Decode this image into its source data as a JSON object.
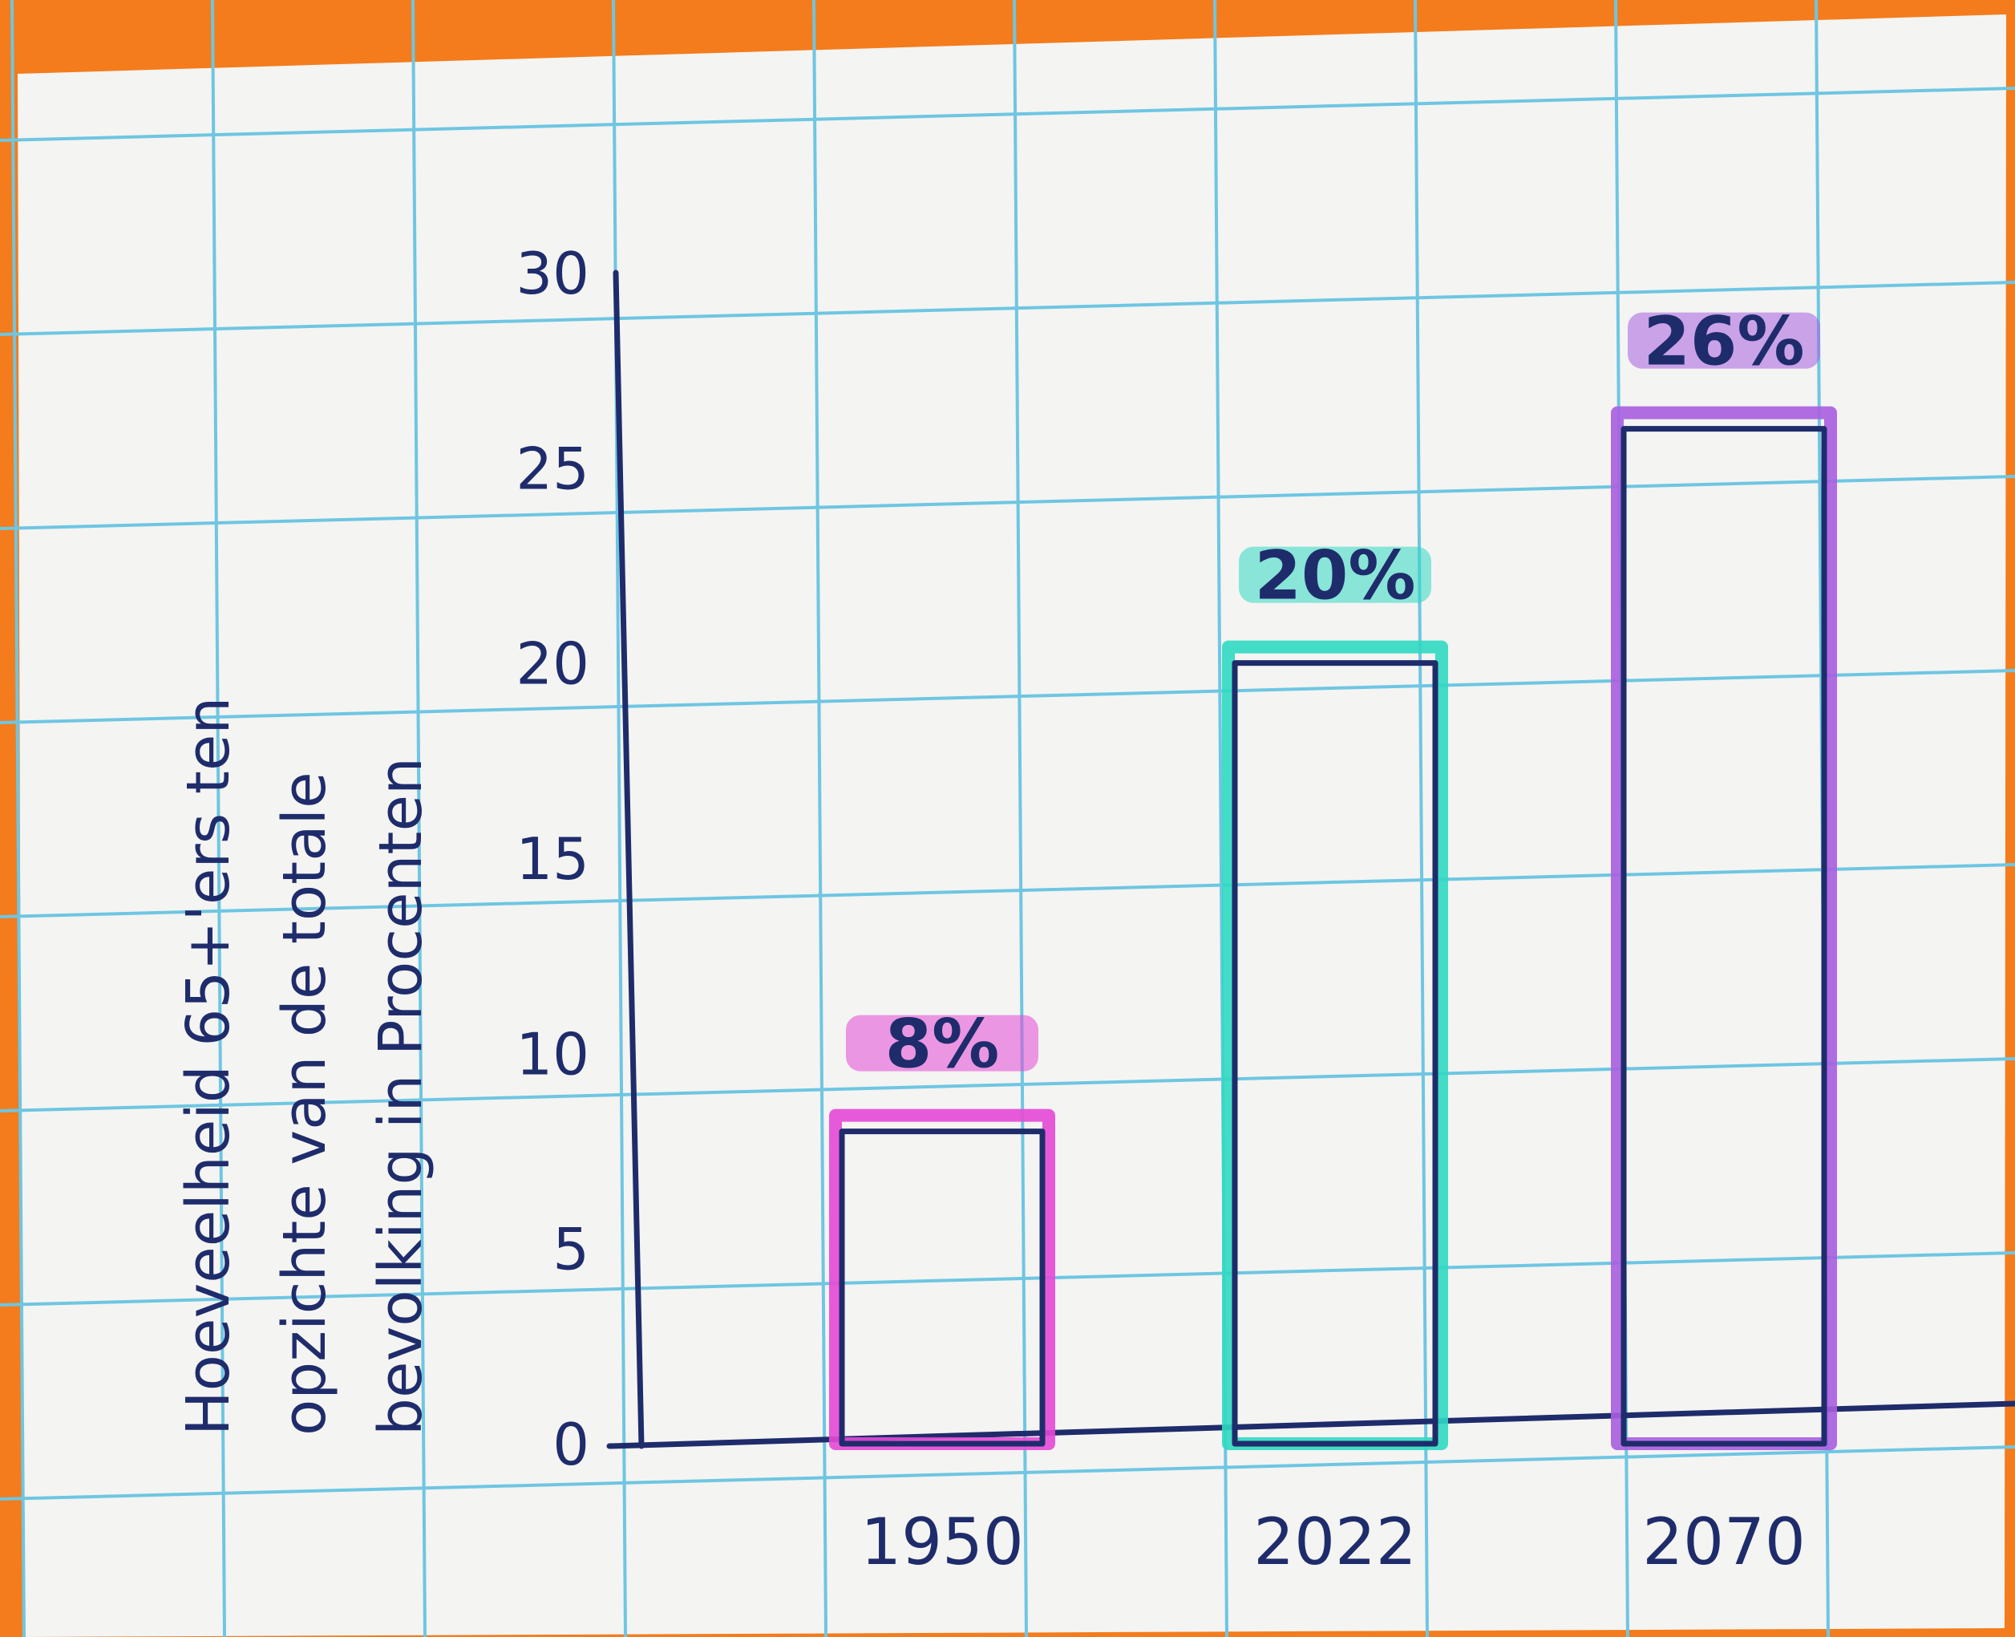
{
  "colors": {
    "background": "#f47c1c",
    "paper": "#f4f4f2",
    "grid": "#6ec6e2",
    "ink": "#1f2c6b",
    "bar_1950": "#e449d6",
    "bar_2022": "#2fd9c2",
    "bar_2070": "#a85ee0"
  },
  "chart_data": {
    "type": "bar",
    "title": "",
    "ylabel": [
      "Hoeveelheid 65+'ers ten",
      "opzichte van de totale",
      "bevolking in Procenten"
    ],
    "xlabel": "",
    "categories": [
      "1950",
      "2022",
      "2070"
    ],
    "values": [
      8,
      20,
      26
    ],
    "data_labels": [
      "8%",
      "20%",
      "26%"
    ],
    "bar_colors": [
      "#e449d6",
      "#2fd9c2",
      "#a85ee0"
    ],
    "yticks": [
      "0",
      "5",
      "10",
      "15",
      "20",
      "25",
      "30"
    ],
    "ylim": [
      0,
      30
    ],
    "grid": true,
    "legend": "none"
  }
}
